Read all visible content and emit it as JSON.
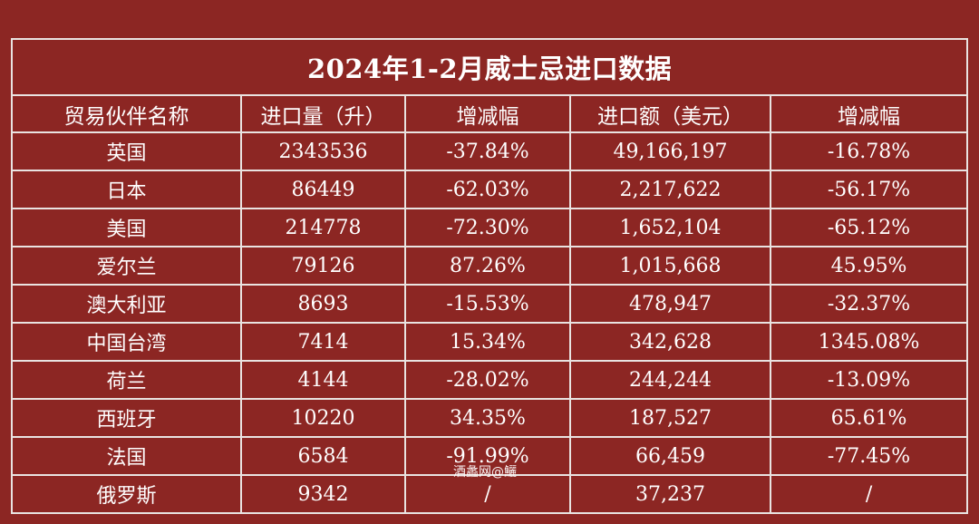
{
  "title": "2024年1-2月威士忌进口数据",
  "headers": [
    "贸易伙伴名称",
    "进口量（升）",
    "增减幅",
    "进口额（美元）",
    "增减幅"
  ],
  "rows": [
    [
      "英国",
      "2343536",
      "-37.84%",
      "49,166,197",
      "-16.78%"
    ],
    [
      "日本",
      "86449",
      "-62.03%",
      "2,217,622",
      "-56.17%"
    ],
    [
      "美国",
      "214778",
      "-72.30%",
      "1,652,104",
      "-65.12%"
    ],
    [
      "爱尔兰",
      "79126",
      "87.26%",
      "1,015,668",
      "45.95%"
    ],
    [
      "澳大利亚",
      "8693",
      "-15.53%",
      "478,947",
      "-32.37%"
    ],
    [
      "中国台湾",
      "7414",
      "15.34%",
      "342,628",
      "1345.08%"
    ],
    [
      "荷兰",
      "4144",
      "-28.02%",
      "244,244",
      "-13.09%"
    ],
    [
      "西班牙",
      "10220",
      "34.35%",
      "187,527",
      "65.61%"
    ],
    [
      "法国",
      "6584",
      "-91.99%",
      "66,459",
      "-77.45%"
    ],
    [
      "俄罗斯",
      "9342",
      "/",
      "37,237",
      "/"
    ]
  ],
  "watermark": "酒蠡网@鱺",
  "colors": {
    "background": "#8c2623",
    "border": "#e9e3e1",
    "text": "#ffffff"
  }
}
